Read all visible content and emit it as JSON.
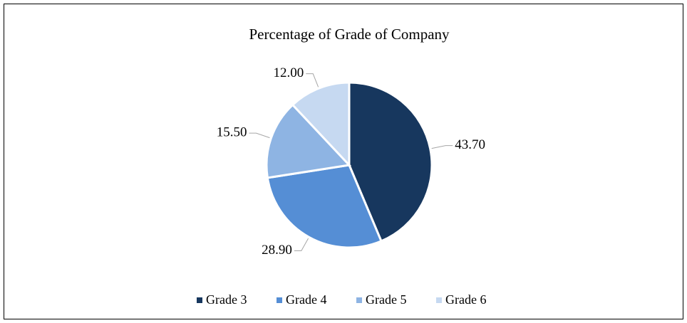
{
  "chart_data": {
    "type": "pie",
    "title": "Percentage of Grade of Company",
    "categories": [
      "Grade 3",
      "Grade 4",
      "Grade 5",
      "Grade 6"
    ],
    "values": [
      43.7,
      28.9,
      15.5,
      12.0
    ],
    "value_labels": [
      "43.70",
      "28.90",
      "15.50",
      "12.00"
    ],
    "colors": [
      "#17375e",
      "#558ed5",
      "#8eb4e3",
      "#c6d9f1"
    ],
    "legend": "bottom"
  }
}
